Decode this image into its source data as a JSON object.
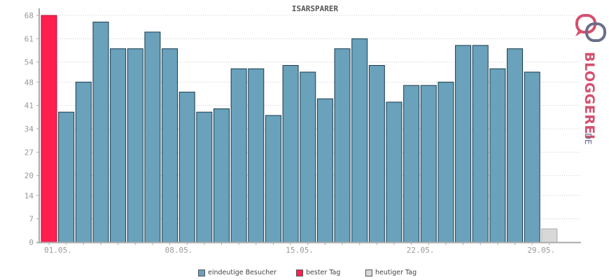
{
  "chart_data": {
    "type": "bar",
    "title": "ISARSPARER",
    "xlabel": "",
    "ylabel": "",
    "ylim": [
      0,
      68
    ],
    "y_ticks": [
      0,
      7,
      14,
      20,
      27,
      34,
      41,
      48,
      54,
      61,
      68
    ],
    "x_tick_labels": [
      {
        "index": 1,
        "label": "01.05."
      },
      {
        "index": 8,
        "label": "08.05."
      },
      {
        "index": 15,
        "label": "15.05."
      },
      {
        "index": 22,
        "label": "22.05."
      },
      {
        "index": 29,
        "label": "29.05."
      }
    ],
    "grid": true,
    "legend_position": "bottom",
    "series": [
      {
        "name": "eindeutige Besucher",
        "color": "#6aa1bb"
      },
      {
        "name": "bester Tag",
        "color": "#ff1f4f"
      },
      {
        "name": "heutiger Tag",
        "color": "#d8d8d8"
      }
    ],
    "bars": [
      {
        "value": 68,
        "type": "best"
      },
      {
        "value": 39,
        "type": "normal"
      },
      {
        "value": 48,
        "type": "normal"
      },
      {
        "value": 66,
        "type": "normal"
      },
      {
        "value": 58,
        "type": "normal"
      },
      {
        "value": 58,
        "type": "normal"
      },
      {
        "value": 63,
        "type": "normal"
      },
      {
        "value": 58,
        "type": "normal"
      },
      {
        "value": 45,
        "type": "normal"
      },
      {
        "value": 39,
        "type": "normal"
      },
      {
        "value": 40,
        "type": "normal"
      },
      {
        "value": 52,
        "type": "normal"
      },
      {
        "value": 52,
        "type": "normal"
      },
      {
        "value": 38,
        "type": "normal"
      },
      {
        "value": 53,
        "type": "normal"
      },
      {
        "value": 51,
        "type": "normal"
      },
      {
        "value": 43,
        "type": "normal"
      },
      {
        "value": 58,
        "type": "normal"
      },
      {
        "value": 61,
        "type": "normal"
      },
      {
        "value": 53,
        "type": "normal"
      },
      {
        "value": 42,
        "type": "normal"
      },
      {
        "value": 47,
        "type": "normal"
      },
      {
        "value": 47,
        "type": "normal"
      },
      {
        "value": 48,
        "type": "normal"
      },
      {
        "value": 59,
        "type": "normal"
      },
      {
        "value": 59,
        "type": "normal"
      },
      {
        "value": 52,
        "type": "normal"
      },
      {
        "value": 58,
        "type": "normal"
      },
      {
        "value": 51,
        "type": "normal"
      },
      {
        "value": 4,
        "type": "today"
      }
    ]
  },
  "logo": {
    "text_main": "BLOGGEREI",
    "text_suffix": ".DE"
  },
  "colors": {
    "axis": "#aaaaaa",
    "grid": "#cccccc",
    "tick_label": "#999999",
    "bar_border": "#1a3b4b",
    "logo_pink": "#d4506e",
    "logo_gray": "#6a6f8a"
  }
}
